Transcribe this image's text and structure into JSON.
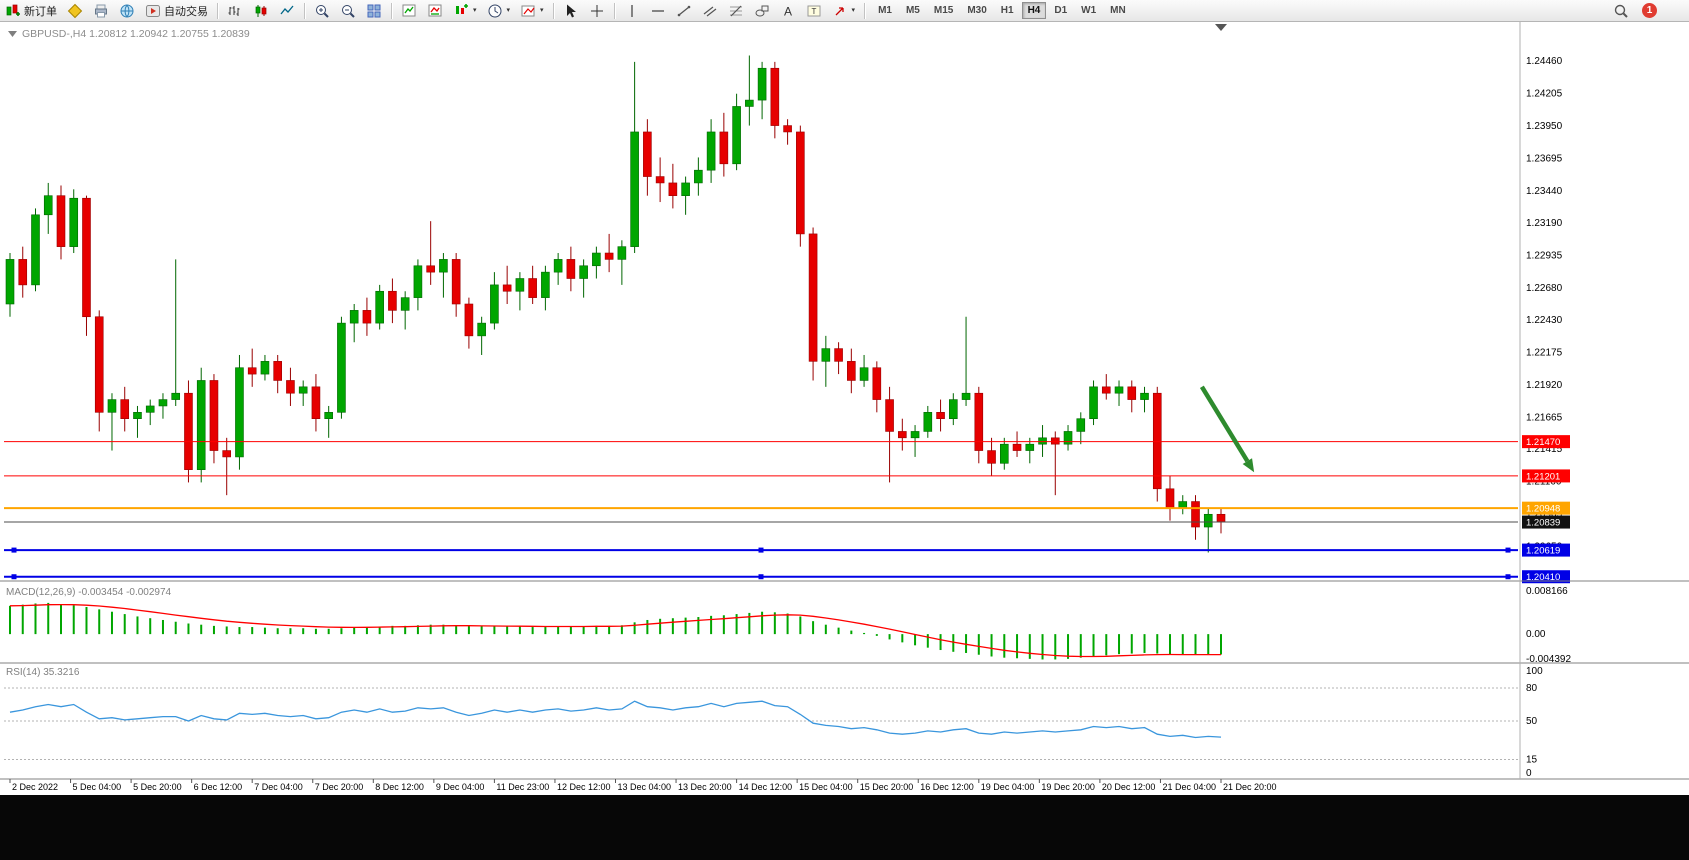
{
  "toolbar": {
    "buttons": {
      "new_order": "新订单",
      "autotrading": "自动交易"
    },
    "timeframes": [
      "M1",
      "M5",
      "M15",
      "M30",
      "H1",
      "H4",
      "D1",
      "W1",
      "MN"
    ],
    "active_timeframe": "H4",
    "notification_badge": "1"
  },
  "chart": {
    "title": "GBPUSD-,H4 1.20812 1.20942 1.20755 1.20839",
    "symbol": "GBPUSD-",
    "period": "H4",
    "open": "1.20812",
    "high": "1.20942",
    "low": "1.20755",
    "close": "1.20839",
    "colors": {
      "bull": "#00A600",
      "bull_edge": "#006600",
      "bear": "#E60000",
      "bear_edge": "#990000",
      "macd_bar": "#00A600",
      "macd_signal": "#FF0000",
      "rsi_line": "#3A96DD",
      "resistance": "#FF0000",
      "support": "#0000E6",
      "pivot": "#FFA500",
      "bid": "#4D4D4D",
      "arrow": "#2E8B2E"
    }
  },
  "chart_data": [
    {
      "type": "candlestick",
      "title": "GBPUSD-,H4",
      "ylim": [
        1.204,
        1.247
      ],
      "y_ticks": [
        "1.24460",
        "1.24205",
        "1.23950",
        "1.23695",
        "1.23440",
        "1.23190",
        "1.22935",
        "1.22680",
        "1.22430",
        "1.22175",
        "1.21920",
        "1.21665",
        "1.21415",
        "1.21160",
        "1.20905",
        "1.20650",
        "1.20395"
      ],
      "x_labels": [
        "2 Dec 2022",
        "5 Dec 04:00",
        "5 Dec 20:00",
        "6 Dec 12:00",
        "7 Dec 04:00",
        "7 Dec 20:00",
        "8 Dec 12:00",
        "9 Dec 04:00",
        "11 Dec 23:00",
        "12 Dec 12:00",
        "13 Dec 04:00",
        "13 Dec 20:00",
        "14 Dec 12:00",
        "15 Dec 04:00",
        "15 Dec 20:00",
        "16 Dec 12:00",
        "19 Dec 04:00",
        "19 Dec 20:00",
        "20 Dec 12:00",
        "21 Dec 04:00",
        "21 Dec 20:00"
      ],
      "candles": [
        [
          1.2255,
          1.2295,
          1.2245,
          1.229
        ],
        [
          1.229,
          1.23,
          1.226,
          1.227
        ],
        [
          1.227,
          1.233,
          1.2265,
          1.2325
        ],
        [
          1.2325,
          1.235,
          1.231,
          1.234
        ],
        [
          1.234,
          1.2348,
          1.229,
          1.23
        ],
        [
          1.23,
          1.2345,
          1.2295,
          1.2338
        ],
        [
          1.2338,
          1.234,
          1.223,
          1.2245
        ],
        [
          1.2245,
          1.225,
          1.2155,
          1.217
        ],
        [
          1.217,
          1.2185,
          1.214,
          1.218
        ],
        [
          1.218,
          1.219,
          1.2155,
          1.2165
        ],
        [
          1.2165,
          1.2175,
          1.215,
          1.217
        ],
        [
          1.217,
          1.218,
          1.216,
          1.2175
        ],
        [
          1.2175,
          1.2185,
          1.2165,
          1.218
        ],
        [
          1.218,
          1.229,
          1.2175,
          1.2185
        ],
        [
          1.2185,
          1.2195,
          1.2115,
          1.2125
        ],
        [
          1.2125,
          1.2205,
          1.2115,
          1.2195
        ],
        [
          1.2195,
          1.22,
          1.213,
          1.214
        ],
        [
          1.214,
          1.215,
          1.2105,
          1.2135
        ],
        [
          1.2135,
          1.2215,
          1.2125,
          1.2205
        ],
        [
          1.2205,
          1.222,
          1.219,
          1.22
        ],
        [
          1.22,
          1.2215,
          1.2195,
          1.221
        ],
        [
          1.221,
          1.2215,
          1.2185,
          1.2195
        ],
        [
          1.2195,
          1.2205,
          1.2175,
          1.2185
        ],
        [
          1.2185,
          1.2195,
          1.2175,
          1.219
        ],
        [
          1.219,
          1.22,
          1.2155,
          1.2165
        ],
        [
          1.2165,
          1.2175,
          1.215,
          1.217
        ],
        [
          1.217,
          1.2245,
          1.2165,
          1.224
        ],
        [
          1.224,
          1.2255,
          1.2225,
          1.225
        ],
        [
          1.225,
          1.226,
          1.223,
          1.224
        ],
        [
          1.224,
          1.227,
          1.2235,
          1.2265
        ],
        [
          1.2265,
          1.2275,
          1.224,
          1.225
        ],
        [
          1.225,
          1.2265,
          1.2235,
          1.226
        ],
        [
          1.226,
          1.229,
          1.225,
          1.2285
        ],
        [
          1.2285,
          1.232,
          1.227,
          1.228
        ],
        [
          1.228,
          1.2295,
          1.226,
          1.229
        ],
        [
          1.229,
          1.2295,
          1.2245,
          1.2255
        ],
        [
          1.2255,
          1.226,
          1.222,
          1.223
        ],
        [
          1.223,
          1.2245,
          1.2215,
          1.224
        ],
        [
          1.224,
          1.228,
          1.2235,
          1.227
        ],
        [
          1.227,
          1.2285,
          1.2255,
          1.2265
        ],
        [
          1.2265,
          1.228,
          1.225,
          1.2275
        ],
        [
          1.2275,
          1.2285,
          1.2255,
          1.226
        ],
        [
          1.226,
          1.2285,
          1.225,
          1.228
        ],
        [
          1.228,
          1.2295,
          1.227,
          1.229
        ],
        [
          1.229,
          1.23,
          1.2265,
          1.2275
        ],
        [
          1.2275,
          1.229,
          1.226,
          1.2285
        ],
        [
          1.2285,
          1.23,
          1.2275,
          1.2295
        ],
        [
          1.2295,
          1.231,
          1.228,
          1.229
        ],
        [
          1.229,
          1.2305,
          1.227,
          1.23
        ],
        [
          1.23,
          1.2445,
          1.2295,
          1.239
        ],
        [
          1.239,
          1.24,
          1.234,
          1.2355
        ],
        [
          1.2355,
          1.237,
          1.2335,
          1.235
        ],
        [
          1.235,
          1.2365,
          1.233,
          1.234
        ],
        [
          1.234,
          1.2355,
          1.2325,
          1.235
        ],
        [
          1.235,
          1.237,
          1.234,
          1.236
        ],
        [
          1.236,
          1.24,
          1.235,
          1.239
        ],
        [
          1.239,
          1.2405,
          1.2355,
          1.2365
        ],
        [
          1.2365,
          1.242,
          1.236,
          1.241
        ],
        [
          1.241,
          1.245,
          1.2395,
          1.2415
        ],
        [
          1.2415,
          1.2445,
          1.24,
          1.244
        ],
        [
          1.244,
          1.2445,
          1.2385,
          1.2395
        ],
        [
          1.2395,
          1.24,
          1.238,
          1.239
        ],
        [
          1.239,
          1.2395,
          1.23,
          1.231
        ],
        [
          1.231,
          1.2315,
          1.2195,
          1.221
        ],
        [
          1.221,
          1.223,
          1.219,
          1.222
        ],
        [
          1.222,
          1.2225,
          1.22,
          1.221
        ],
        [
          1.221,
          1.222,
          1.2185,
          1.2195
        ],
        [
          1.2195,
          1.2215,
          1.219,
          1.2205
        ],
        [
          1.2205,
          1.221,
          1.217,
          1.218
        ],
        [
          1.218,
          1.219,
          1.2115,
          1.2155
        ],
        [
          1.2155,
          1.2165,
          1.214,
          1.215
        ],
        [
          1.215,
          1.216,
          1.2135,
          1.2155
        ],
        [
          1.2155,
          1.2175,
          1.215,
          1.217
        ],
        [
          1.217,
          1.218,
          1.2155,
          1.2165
        ],
        [
          1.2165,
          1.2185,
          1.216,
          1.218
        ],
        [
          1.218,
          1.2245,
          1.2175,
          1.2185
        ],
        [
          1.2185,
          1.219,
          1.213,
          1.214
        ],
        [
          1.214,
          1.215,
          1.212,
          1.213
        ],
        [
          1.213,
          1.215,
          1.2125,
          1.2145
        ],
        [
          1.2145,
          1.2155,
          1.2135,
          1.214
        ],
        [
          1.214,
          1.215,
          1.213,
          1.2145
        ],
        [
          1.2145,
          1.216,
          1.2135,
          1.215
        ],
        [
          1.215,
          1.2155,
          1.2105,
          1.2145
        ],
        [
          1.2145,
          1.216,
          1.214,
          1.2155
        ],
        [
          1.2155,
          1.217,
          1.2145,
          1.2165
        ],
        [
          1.2165,
          1.2195,
          1.216,
          1.219
        ],
        [
          1.219,
          1.22,
          1.218,
          1.2185
        ],
        [
          1.2185,
          1.2195,
          1.2175,
          1.219
        ],
        [
          1.219,
          1.2195,
          1.217,
          1.218
        ],
        [
          1.218,
          1.219,
          1.217,
          1.2185
        ],
        [
          1.2185,
          1.219,
          1.21,
          1.211
        ],
        [
          1.211,
          1.212,
          1.2085,
          1.2095
        ],
        [
          1.2095,
          1.2105,
          1.209,
          1.21
        ],
        [
          1.21,
          1.2105,
          1.207,
          1.208
        ],
        [
          1.208,
          1.2095,
          1.206,
          1.209
        ],
        [
          1.209,
          1.2095,
          1.2075,
          1.20839
        ]
      ],
      "hlines": [
        {
          "price": 1.2147,
          "label": "1.21470",
          "color": "#FF0000",
          "width": 1
        },
        {
          "price": 1.21201,
          "label": "1.21201",
          "color": "#FF0000",
          "width": 1
        },
        {
          "price": 1.20948,
          "label": "1.20948",
          "color": "#FFA500",
          "width": 2
        },
        {
          "price": 1.20839,
          "label": "1.20839",
          "color": "#4D4D4D",
          "width": 1,
          "role": "bid"
        },
        {
          "price": 1.20619,
          "label": "1.20619",
          "color": "#0000E6",
          "width": 2,
          "selected": true
        },
        {
          "price": 1.2041,
          "label": "1.20410",
          "color": "#0000E6",
          "width": 2,
          "selected": true
        }
      ],
      "arrow_annotation": {
        "from_index": 93.5,
        "from_price": 1.219,
        "to_index": 97.6,
        "to_price": 1.2123,
        "color": "#2E8B2E"
      }
    },
    {
      "type": "macd",
      "label": "MACD(12,26,9) -0.003454 -0.002974",
      "main_value": "-0.003454",
      "signal_value": "-0.002974",
      "ylim": [
        -0.004392,
        0.008166
      ],
      "y_ticks": [
        "0.008166",
        "0.00",
        "-0.004392"
      ],
      "histogram": [
        0.0048,
        0.005,
        0.0052,
        0.0053,
        0.0051,
        0.0049,
        0.0046,
        0.0042,
        0.0038,
        0.0034,
        0.003,
        0.0027,
        0.0024,
        0.0021,
        0.0018,
        0.0016,
        0.0014,
        0.0013,
        0.0012,
        0.0012,
        0.0011,
        0.001,
        0.001,
        0.001,
        0.0009,
        0.0009,
        0.001,
        0.0011,
        0.0012,
        0.0013,
        0.0014,
        0.0014,
        0.0015,
        0.0016,
        0.0016,
        0.0015,
        0.0014,
        0.0013,
        0.0013,
        0.0013,
        0.0013,
        0.0012,
        0.0012,
        0.0013,
        0.0013,
        0.0013,
        0.0014,
        0.0014,
        0.0015,
        0.002,
        0.0024,
        0.0026,
        0.0027,
        0.0028,
        0.0029,
        0.0031,
        0.0032,
        0.0034,
        0.0036,
        0.0038,
        0.0037,
        0.0035,
        0.003,
        0.0022,
        0.0016,
        0.0011,
        0.0006,
        0.0002,
        -0.0003,
        -0.0009,
        -0.0014,
        -0.0019,
        -0.0023,
        -0.0027,
        -0.003,
        -0.0032,
        -0.0035,
        -0.0038,
        -0.004,
        -0.0041,
        -0.0042,
        -0.0043,
        -0.0043,
        -0.0042,
        -0.004,
        -0.0038,
        -0.0036,
        -0.0034,
        -0.0033,
        -0.0032,
        -0.0033,
        -0.0034,
        -0.0035,
        -0.0035,
        -0.0035,
        -0.003454
      ]
    },
    {
      "type": "rsi",
      "label": "RSI(14) 35.3216",
      "value": "35.3216",
      "ylim": [
        0,
        100
      ],
      "levels": [
        80,
        50,
        15
      ],
      "y_ticks": [
        "100",
        "80",
        "50",
        "15",
        "0"
      ],
      "values": [
        58,
        60,
        63,
        65,
        63,
        65,
        58,
        52,
        53,
        51,
        52,
        53,
        54,
        54,
        50,
        55,
        52,
        51,
        57,
        56,
        57,
        55,
        54,
        55,
        52,
        53,
        58,
        60,
        58,
        61,
        58,
        59,
        62,
        61,
        62,
        58,
        55,
        57,
        60,
        58,
        60,
        58,
        60,
        61,
        59,
        60,
        62,
        60,
        61,
        68,
        63,
        62,
        60,
        62,
        63,
        66,
        63,
        66,
        67,
        68,
        64,
        63,
        56,
        48,
        46,
        45,
        43,
        44,
        42,
        39,
        38,
        39,
        41,
        40,
        42,
        43,
        39,
        38,
        40,
        39,
        40,
        41,
        40,
        41,
        42,
        45,
        44,
        45,
        43,
        44,
        38,
        36,
        37,
        35,
        36,
        35.3216
      ]
    }
  ]
}
